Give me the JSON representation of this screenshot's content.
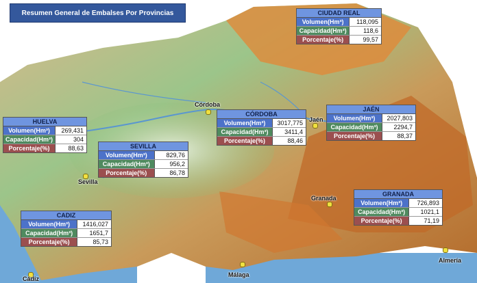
{
  "title": "Resumen General de Embalses Por Provincias",
  "provinces": [
    {
      "name": "CIUDAD REAL",
      "rows": [
        {
          "label": "Volumen(Hm³)",
          "value": "118,095"
        },
        {
          "label": "Capacidad(Hm³)",
          "value": "118,6"
        },
        {
          "label": "Porcentaje(%)",
          "value": "99,57"
        }
      ]
    },
    {
      "name": "HUELVA",
      "rows": [
        {
          "label": "Volumen(Hm³)",
          "value": "269,431"
        },
        {
          "label": "Capacidad(Hm³)",
          "value": "304"
        },
        {
          "label": "Porcentaje(%)",
          "value": "88,63"
        }
      ]
    },
    {
      "name": "SEVILLA",
      "rows": [
        {
          "label": "Volumen(Hm³)",
          "value": "829,76"
        },
        {
          "label": "Capacidad(Hm³)",
          "value": "956,2"
        },
        {
          "label": "Porcentaje(%)",
          "value": "86,78"
        }
      ]
    },
    {
      "name": "CÓRDOBA",
      "rows": [
        {
          "label": "Volumen(Hm³)",
          "value": "3017,775"
        },
        {
          "label": "Capacidad(Hm³)",
          "value": "3411,4"
        },
        {
          "label": "Porcentaje(%)",
          "value": "88,46"
        }
      ]
    },
    {
      "name": "JAÉN",
      "rows": [
        {
          "label": "Volumen(Hm³)",
          "value": "2027,803"
        },
        {
          "label": "Capacidad(Hm³)",
          "value": "2294,7"
        },
        {
          "label": "Porcentaje(%)",
          "value": "88,37"
        }
      ]
    },
    {
      "name": "GRANADA",
      "rows": [
        {
          "label": "Volumen(Hm³)",
          "value": "726,893"
        },
        {
          "label": "Capacidad(Hm³)",
          "value": "1021,1"
        },
        {
          "label": "Porcentaje(%)",
          "value": "71,19"
        }
      ]
    },
    {
      "name": "CADIZ",
      "rows": [
        {
          "label": "Volumen(Hm³)",
          "value": "1416,027"
        },
        {
          "label": "Capacidad(Hm³)",
          "value": "1651,7"
        },
        {
          "label": "Porcentaje(%)",
          "value": "85,73"
        }
      ]
    }
  ],
  "cities": [
    "Córdoba",
    "Jaén",
    "Sevilla",
    "Granada",
    "Málaga",
    "Almería",
    "Cádiz"
  ]
}
